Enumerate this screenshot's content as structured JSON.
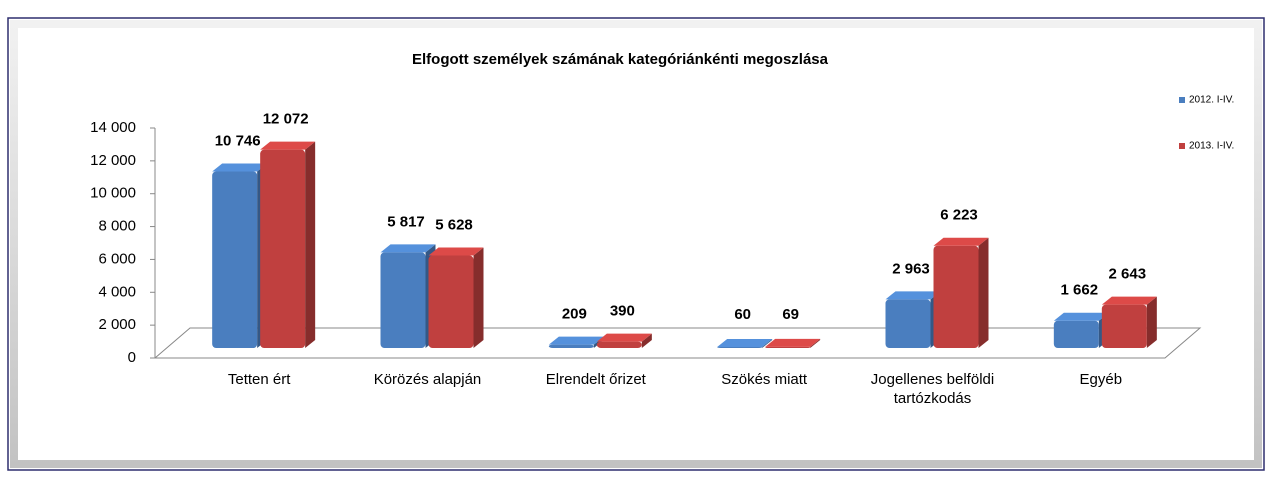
{
  "chart_data": {
    "type": "bar3d",
    "title": "Elfogott személyek számának kategóriánkénti megoszlása",
    "categories": [
      "Tetten ért",
      "Körözés alapján",
      "Elrendelt őrizet",
      "Szökés miatt",
      "Jogellenes belföldi tartózkodás",
      "Egyéb"
    ],
    "series": [
      {
        "name": "2012. I-IV.",
        "color": "#4a7ebf",
        "values": [
          10746,
          5817,
          209,
          60,
          2963,
          1662
        ],
        "value_labels": [
          "10 746",
          "5 817",
          "209",
          "60",
          "2 963",
          "1 662"
        ]
      },
      {
        "name": "2013. I-IV.",
        "color": "#c0403f",
        "values": [
          12072,
          5628,
          390,
          69,
          6223,
          2643
        ],
        "value_labels": [
          "12 072",
          "5 628",
          "390",
          "69",
          "6 223",
          "2 643"
        ]
      }
    ],
    "ylim": [
      0,
      14000
    ],
    "yticks": [
      {
        "value": 0,
        "label": "0"
      },
      {
        "value": 2000,
        "label": "2 000"
      },
      {
        "value": 4000,
        "label": "4 000"
      },
      {
        "value": 6000,
        "label": "6 000"
      },
      {
        "value": 8000,
        "label": "8 000"
      },
      {
        "value": 10000,
        "label": "10 000"
      },
      {
        "value": 12000,
        "label": "12 000"
      },
      {
        "value": 14000,
        "label": "14 000"
      }
    ],
    "legend": "right"
  }
}
